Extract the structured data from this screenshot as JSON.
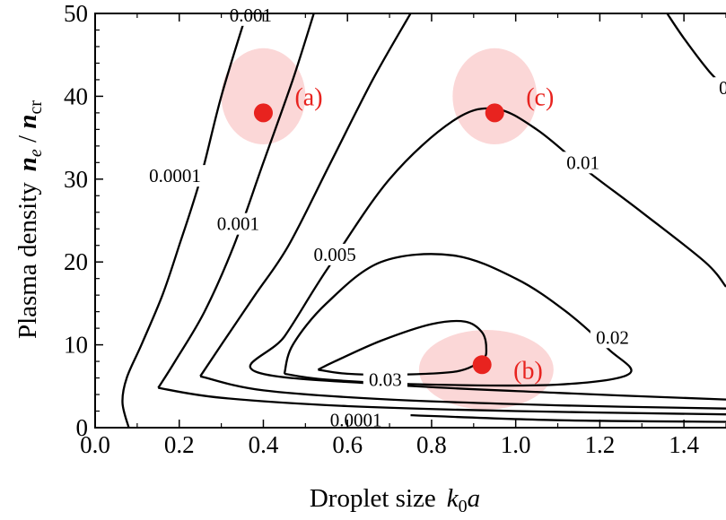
{
  "chart_data": {
    "type": "contour",
    "title": "",
    "xlabel": {
      "text": "Droplet size",
      "symbol": "k",
      "sub": "0",
      "tail": "a"
    },
    "ylabel": {
      "text": "Plasma density",
      "symbol": "n",
      "sub": "e",
      "slash": " / ",
      "symbol2": "n",
      "sub2": "cr"
    },
    "xlim": [
      0.0,
      1.5
    ],
    "ylim": [
      0,
      50
    ],
    "xticks": [
      "0.0",
      "0.2",
      "0.4",
      "0.6",
      "0.8",
      "1.0",
      "1.2",
      "1.4"
    ],
    "yticks": [
      "0",
      "10",
      "20",
      "30",
      "40",
      "50"
    ],
    "contours": [
      {
        "level": "0.0001",
        "points": [
          [
            0.08,
            0
          ],
          [
            0.065,
            3
          ],
          [
            0.075,
            6
          ],
          [
            0.11,
            10
          ],
          [
            0.16,
            16
          ],
          [
            0.2,
            22
          ],
          [
            0.25,
            30
          ],
          [
            0.3,
            40
          ],
          [
            0.36,
            50
          ]
        ]
      },
      {
        "level": "0.0001",
        "points": [
          [
            0.75,
            1.5
          ],
          [
            1.1,
            0.9
          ],
          [
            1.5,
            0.7
          ]
        ]
      },
      {
        "level": "0.001",
        "points": [
          [
            0.15,
            4.8
          ],
          [
            0.19,
            8
          ],
          [
            0.26,
            14
          ],
          [
            0.33,
            22
          ],
          [
            0.4,
            32
          ],
          [
            0.47,
            42
          ],
          [
            0.52,
            50
          ]
        ]
      },
      {
        "level": "0.001",
        "points": [
          [
            0.15,
            4.8
          ],
          [
            0.3,
            3.6
          ],
          [
            0.6,
            2.6
          ],
          [
            1.0,
            2.0
          ],
          [
            1.5,
            1.6
          ]
        ]
      },
      {
        "level": "0.005",
        "points": [
          [
            0.25,
            6.2
          ],
          [
            0.3,
            10
          ],
          [
            0.38,
            16
          ],
          [
            0.46,
            22
          ],
          [
            0.56,
            32
          ],
          [
            0.66,
            42
          ],
          [
            0.75,
            50
          ]
        ]
      },
      {
        "level": "0.005",
        "points": [
          [
            0.25,
            6.2
          ],
          [
            0.4,
            4.5
          ],
          [
            0.7,
            3.4
          ],
          [
            1.1,
            2.7
          ],
          [
            1.5,
            2.3
          ]
        ]
      },
      {
        "level": "0.01",
        "points": [
          [
            1.5,
            3.4
          ],
          [
            1.1,
            4.2
          ],
          [
            0.7,
            5.2
          ],
          [
            0.38,
            6.8
          ],
          [
            0.45,
            11
          ],
          [
            0.55,
            19
          ],
          [
            0.7,
            30
          ],
          [
            0.85,
            37
          ],
          [
            0.95,
            38.5
          ],
          [
            1.05,
            36
          ],
          [
            1.17,
            31
          ],
          [
            1.3,
            26
          ],
          [
            1.45,
            20
          ],
          [
            1.5,
            17
          ]
        ]
      },
      {
        "level": "0.02",
        "points": [
          [
            0.45,
            6.5
          ],
          [
            0.47,
            10
          ],
          [
            0.55,
            15
          ],
          [
            0.68,
            20
          ],
          [
            0.85,
            20.8
          ],
          [
            1.0,
            18
          ],
          [
            1.12,
            14
          ],
          [
            1.22,
            9.5
          ],
          [
            1.27,
            6.5
          ],
          [
            1.1,
            5.2
          ],
          [
            0.8,
            5.2
          ],
          [
            0.55,
            5.8
          ],
          [
            0.45,
            6.5
          ]
        ]
      },
      {
        "level": "0.03",
        "points": [
          [
            0.53,
            7.0
          ],
          [
            0.57,
            8.0
          ],
          [
            0.68,
            10.5
          ],
          [
            0.8,
            12.5
          ],
          [
            0.88,
            12.8
          ],
          [
            0.92,
            11.5
          ],
          [
            0.93,
            9.5
          ],
          [
            0.92,
            8.2
          ],
          [
            0.86,
            6.8
          ],
          [
            0.72,
            6.4
          ],
          [
            0.6,
            6.5
          ],
          [
            0.53,
            7.0
          ]
        ]
      },
      {
        "level": "0.0001",
        "points": [
          [
            1.36,
            50
          ],
          [
            1.4,
            47
          ],
          [
            1.46,
            43
          ],
          [
            1.5,
            41
          ]
        ]
      }
    ],
    "contour_labels": [
      {
        "text": "0.001",
        "x": 0.37,
        "y": 49.8
      },
      {
        "text": "0.0001",
        "x": 0.19,
        "y": 30.4
      },
      {
        "text": "0.001",
        "x": 0.34,
        "y": 24.6
      },
      {
        "text": "0.005",
        "x": 0.57,
        "y": 20.9
      },
      {
        "text": "0.01",
        "x": 1.16,
        "y": 32.0
      },
      {
        "text": "0.02",
        "x": 1.23,
        "y": 10.9
      },
      {
        "text": "0.03",
        "x": 0.69,
        "y": 5.8
      },
      {
        "text": "0.0001",
        "x": 0.62,
        "y": 0.9
      },
      {
        "text": "0.",
        "x": 1.5,
        "y": 41.0
      }
    ],
    "markers": [
      {
        "label": "(a)",
        "x": 0.4,
        "y": 38.0,
        "hx": 0.4,
        "hy": 40.0,
        "rx": 0.1,
        "ry": 5.8
      },
      {
        "label": "(c)",
        "x": 0.95,
        "y": 38.0,
        "hx": 0.95,
        "hy": 40.0,
        "rx": 0.1,
        "ry": 5.8
      },
      {
        "label": "(b)",
        "x": 0.92,
        "y": 7.6,
        "hx": 0.93,
        "hy": 7.0,
        "rx": 0.16,
        "ry": 4.8
      }
    ],
    "colors": {
      "marker": "#e8231f",
      "halo": "#fbd7d7",
      "line": "#000000"
    },
    "grid": false,
    "legend": "none"
  }
}
